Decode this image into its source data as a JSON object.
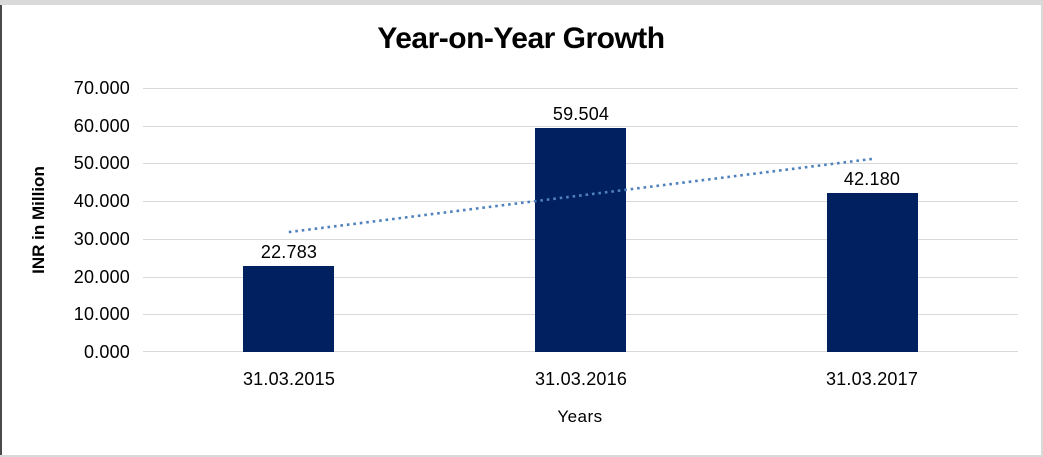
{
  "window": {
    "background": "#ffffff",
    "top_strip_color": "#d9d9d9",
    "left_edge_color": "#4a4a4a",
    "border_color": "#d9d9d9"
  },
  "chart_data": {
    "type": "bar",
    "title": "Year-on-Year Growth",
    "xlabel": "Years",
    "ylabel": "INR in Million",
    "categories": [
      "31.03.2015",
      "31.03.2016",
      "31.03.2017"
    ],
    "values": [
      22.783,
      59.504,
      42.18
    ],
    "data_labels": [
      "22.783",
      "59.504",
      "42.180"
    ],
    "ylim": [
      0,
      70
    ],
    "ytick_values": [
      70,
      60,
      50,
      40,
      30,
      20,
      10,
      0
    ],
    "ytick_labels": [
      "70.000",
      "60.000",
      "50.000",
      "40.000",
      "30.000",
      "20.000",
      "10.000",
      "0.000"
    ],
    "grid": true,
    "legend": "none",
    "bar_color": "#002060",
    "gridline_color": "#d9d9d9",
    "trendline": {
      "type": "linear",
      "style": "dotted",
      "color": "#4f81bd",
      "start_category_index": 0,
      "end_category_index": 2,
      "start_value": 31.8,
      "end_value": 51.2
    }
  }
}
